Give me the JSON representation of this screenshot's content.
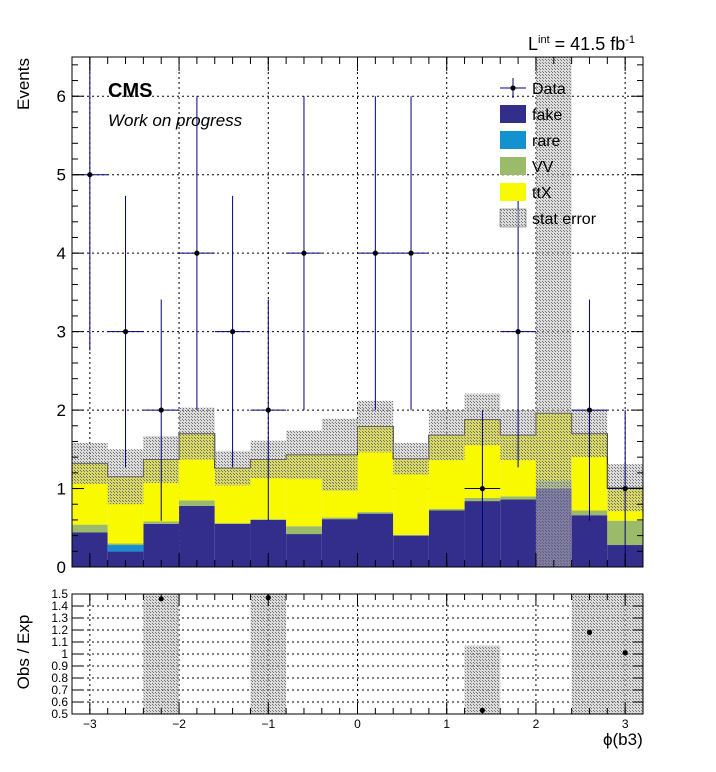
{
  "chart_data": [
    {
      "type": "bar",
      "stacked": true,
      "x_bin_edges": [
        -3.2,
        -2.8,
        -2.4,
        -2.0,
        -1.6,
        -1.2,
        -0.8,
        -0.4,
        0.0,
        0.4,
        0.8,
        1.2,
        1.6,
        2.0,
        2.4,
        2.8,
        3.2
      ],
      "series": [
        {
          "name": "fake",
          "color": "#332d8c",
          "values": [
            0.44,
            0.2,
            0.55,
            0.78,
            0.55,
            0.6,
            0.42,
            0.61,
            0.68,
            0.4,
            0.72,
            0.84,
            0.86,
            1.0,
            0.66,
            0.28
          ]
        },
        {
          "name": "rare",
          "color": "#1491cf",
          "values": [
            0.0,
            0.08,
            0.0,
            0.0,
            0.0,
            0.0,
            0.0,
            0.0,
            0.0,
            0.0,
            0.0,
            0.0,
            0.0,
            0.0,
            0.0,
            0.0
          ]
        },
        {
          "name": "VV",
          "color": "#9bbb6a",
          "values": [
            0.1,
            0.02,
            0.03,
            0.07,
            0.01,
            0.01,
            0.1,
            0.02,
            0.02,
            0.01,
            0.02,
            0.04,
            0.04,
            0.1,
            0.06,
            0.31
          ]
        },
        {
          "name": "ttX",
          "color": "#f9f900",
          "values": [
            0.78,
            0.85,
            0.79,
            0.85,
            0.7,
            0.76,
            0.91,
            0.8,
            1.09,
            0.97,
            0.94,
            1.0,
            0.78,
            0.86,
            0.98,
            0.42
          ]
        }
      ],
      "stat_error": {
        "name": "stat error",
        "up": [
          0.26,
          0.35,
          0.3,
          0.33,
          0.22,
          0.24,
          0.31,
          0.46,
          0.33,
          0.2,
          0.32,
          0.33,
          0.32,
          4.6,
          0.3,
          0.3
        ],
        "down": [
          0.26,
          0.35,
          0.3,
          0.33,
          0.22,
          0.24,
          0.31,
          0.46,
          0.33,
          0.2,
          0.32,
          0.33,
          0.32,
          1.96,
          0.3,
          0.3
        ]
      },
      "data": {
        "name": "Data",
        "x": [
          -3.0,
          -2.6,
          -2.2,
          -1.8,
          -1.4,
          -1.0,
          -0.6,
          0.2,
          0.6,
          1.4,
          1.8,
          2.6,
          3.0
        ],
        "y": [
          5,
          3,
          2,
          4,
          3,
          2,
          4,
          4,
          4,
          1,
          3,
          2,
          1
        ],
        "err_up": [
          2.4,
          1.73,
          1.41,
          2.0,
          1.73,
          1.41,
          2.0,
          2.0,
          2.0,
          1.0,
          1.73,
          1.41,
          1.0
        ],
        "err_down": [
          2.24,
          1.73,
          1.41,
          2.0,
          1.73,
          1.41,
          2.0,
          2.0,
          2.0,
          1.0,
          1.73,
          1.41,
          1.0
        ]
      },
      "xlim": [
        -3.2,
        3.2
      ],
      "ylim": [
        0,
        6.5
      ],
      "y_ticks": [
        0,
        1,
        2,
        3,
        4,
        5,
        6
      ],
      "ylabel": "Events",
      "lumi_text": "L",
      "lumi_sup": "int",
      "lumi_value": "= 41.5 fb",
      "lumi_exp": "-1",
      "cms_label": "CMS",
      "cms_sublabel": "Work on progress",
      "grid": true,
      "legend": "top-right"
    },
    {
      "type": "scatter",
      "xlim": [
        -3.2,
        3.2
      ],
      "ylim": [
        0.5,
        1.5
      ],
      "x_ticks": [
        -3,
        -2,
        -1,
        0,
        1,
        2,
        3
      ],
      "y_ticks": [
        "0.5",
        "0.6",
        "0.7",
        "0.8",
        "0.9",
        "1",
        "1.1",
        "1.2",
        "1.3",
        "1.4",
        "1.5"
      ],
      "ratio_points": {
        "x": [
          -2.2,
          -1.0,
          1.4,
          2.6,
          3.0
        ],
        "y": [
          1.46,
          1.47,
          0.53,
          1.18,
          1.01
        ]
      },
      "ratio_err_bands": [
        {
          "x_from": -2.4,
          "x_to": -2.0,
          "y_from": 0.5,
          "y_to": 1.5
        },
        {
          "x_from": -1.2,
          "x_to": -0.8,
          "y_from": 0.5,
          "y_to": 1.5
        },
        {
          "x_from": 1.2,
          "x_to": 1.6,
          "y_from": 0.5,
          "y_to": 1.07
        },
        {
          "x_from": 2.4,
          "x_to": 3.2,
          "y_from": 0.5,
          "y_to": 1.5
        }
      ],
      "xlabel": "ϕ(b3)",
      "ylabel": "Obs / Exp",
      "grid": true
    }
  ]
}
